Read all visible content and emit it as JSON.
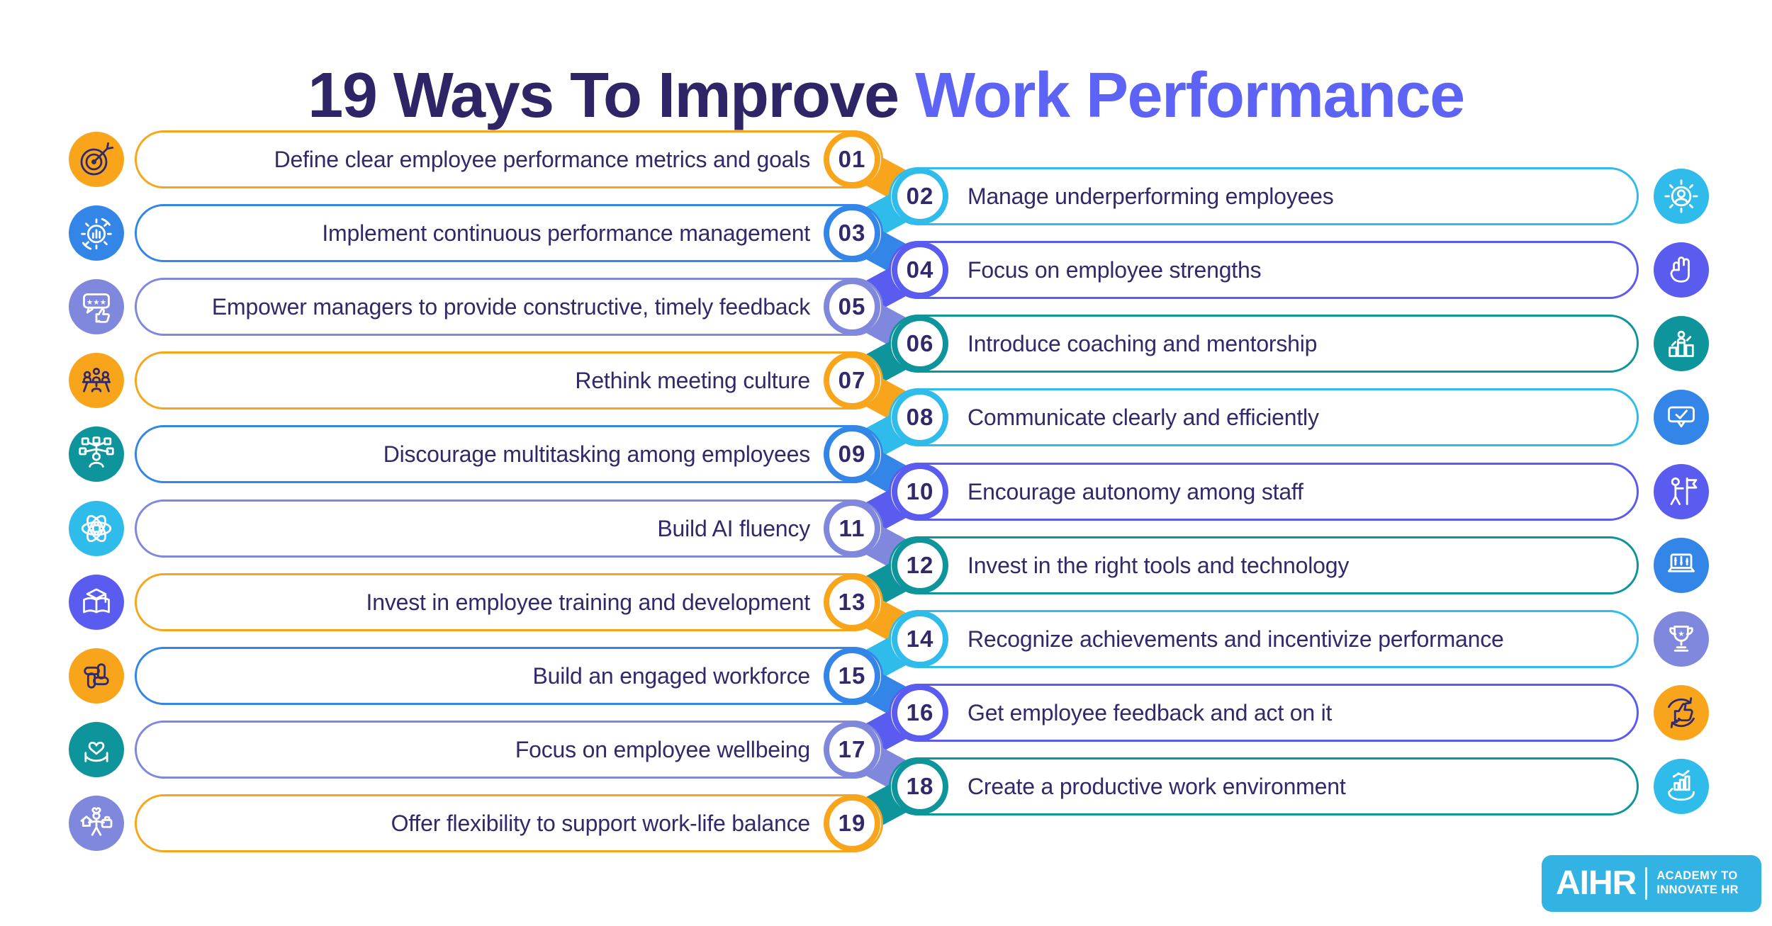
{
  "title": {
    "prefix": "19 Ways To Improve ",
    "highlight": "Work Performance"
  },
  "palette": {
    "orange": "#F9A51B",
    "cyan": "#2FBCEA",
    "blue": "#3485E8",
    "indigo": "#5A5BEF",
    "periwinkle": "#7F88DC",
    "teal": "#0E949B",
    "navy": "#32296B",
    "title_navy": "#2D2566",
    "title_accent": "#5C63F5",
    "logo_bg": "#33B3E3"
  },
  "items": [
    {
      "number": "01",
      "label": "Define clear employee performance metrics and goals",
      "side": "left",
      "color": "orange",
      "icon": "target-icon",
      "icon_color": "orange"
    },
    {
      "number": "02",
      "label": "Manage underperforming employees",
      "side": "right",
      "color": "cyan",
      "icon": "gear-person-icon",
      "icon_color": "cyan"
    },
    {
      "number": "03",
      "label": "Implement continuous performance management",
      "side": "left",
      "color": "blue",
      "icon": "gear-chart-icon",
      "icon_color": "blue"
    },
    {
      "number": "04",
      "label": "Focus on employee strengths",
      "side": "right",
      "color": "indigo",
      "icon": "fist-icon",
      "icon_color": "indigo"
    },
    {
      "number": "05",
      "label": "Empower managers to provide constructive, timely feedback",
      "side": "left",
      "color": "periwinkle",
      "icon": "feedback-stars-icon",
      "icon_color": "periwinkle"
    },
    {
      "number": "06",
      "label": "Introduce coaching and mentorship",
      "side": "right",
      "color": "teal",
      "icon": "podium-person-icon",
      "icon_color": "teal"
    },
    {
      "number": "07",
      "label": "Rethink meeting culture",
      "side": "left",
      "color": "orange",
      "icon": "meeting-icon",
      "icon_color": "orange"
    },
    {
      "number": "08",
      "label": "Communicate clearly and efficiently",
      "side": "right",
      "color": "cyan",
      "icon": "chat-check-icon",
      "icon_color": "blue"
    },
    {
      "number": "09",
      "label": "Discourage multitasking among employees",
      "side": "left",
      "color": "blue",
      "icon": "multitask-icon",
      "icon_color": "teal"
    },
    {
      "number": "10",
      "label": "Encourage autonomy among staff",
      "side": "right",
      "color": "indigo",
      "icon": "flag-person-icon",
      "icon_color": "indigo"
    },
    {
      "number": "11",
      "label": "Build AI fluency",
      "side": "left",
      "color": "periwinkle",
      "icon": "ai-atom-icon",
      "icon_color": "cyan"
    },
    {
      "number": "12",
      "label": "Invest in the right tools and technology",
      "side": "right",
      "color": "teal",
      "icon": "laptop-tech-icon",
      "icon_color": "blue"
    },
    {
      "number": "13",
      "label": "Invest in employee training and development",
      "side": "left",
      "color": "orange",
      "icon": "book-gradcap-icon",
      "icon_color": "indigo"
    },
    {
      "number": "14",
      "label": "Recognize achievements and incentivize performance",
      "side": "right",
      "color": "cyan",
      "icon": "trophy-icon",
      "icon_color": "periwinkle"
    },
    {
      "number": "15",
      "label": "Build an engaged workforce",
      "side": "left",
      "color": "blue",
      "icon": "hands-together-icon",
      "icon_color": "orange"
    },
    {
      "number": "16",
      "label": "Get employee feedback and act on it",
      "side": "right",
      "color": "indigo",
      "icon": "thumbs-refresh-icon",
      "icon_color": "orange"
    },
    {
      "number": "17",
      "label": "Focus on employee wellbeing",
      "side": "left",
      "color": "periwinkle",
      "icon": "heart-hands-icon",
      "icon_color": "teal"
    },
    {
      "number": "18",
      "label": "Create a productive work environment",
      "side": "right",
      "color": "teal",
      "icon": "hand-chart-icon",
      "icon_color": "cyan"
    },
    {
      "number": "19",
      "label": "Offer flexibility to support work-life balance",
      "side": "left",
      "color": "orange",
      "icon": "work-life-icon",
      "icon_color": "periwinkle"
    }
  ],
  "logo": {
    "name": "AIHR",
    "tagline_line1": "ACADEMY TO",
    "tagline_line2": "INNOVATE HR"
  }
}
